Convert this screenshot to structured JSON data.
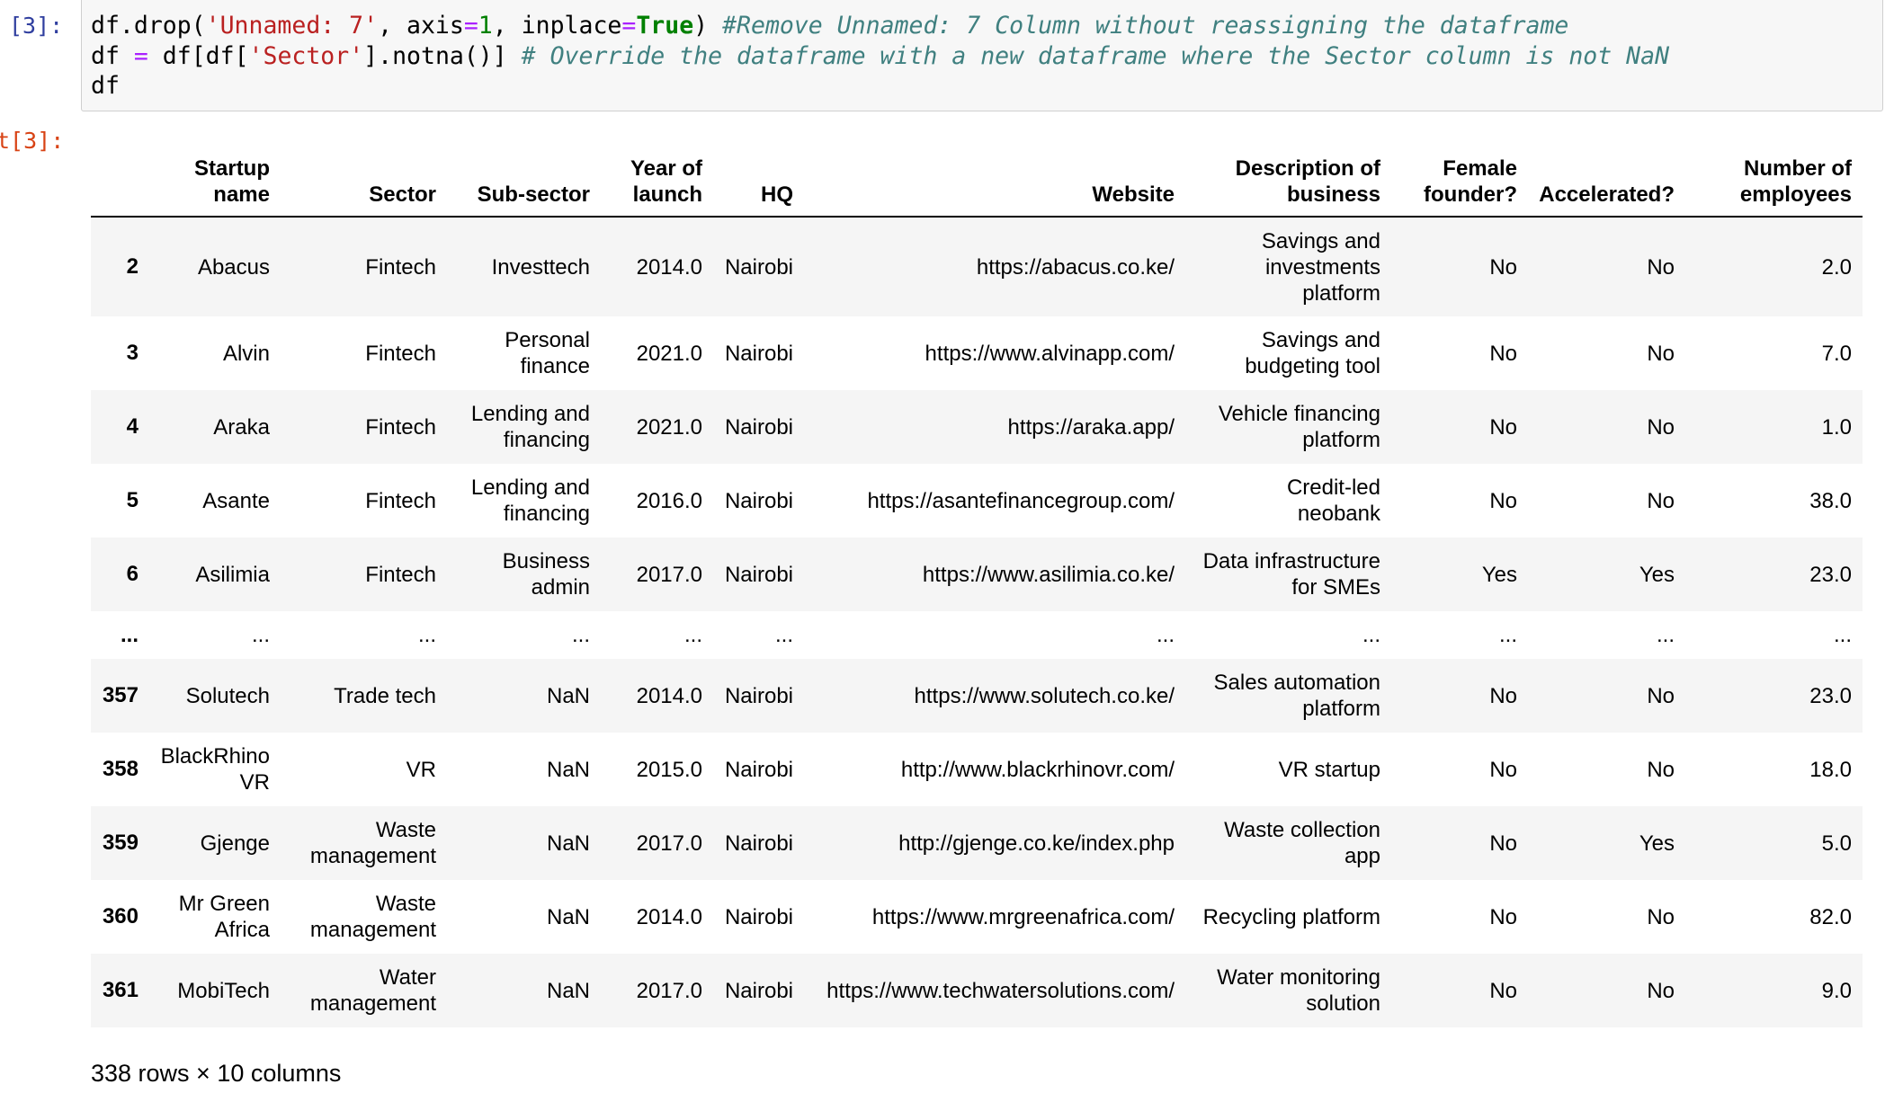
{
  "prompts": {
    "input": "[3]:",
    "output": "t[3]:"
  },
  "code": {
    "line1": {
      "p1": "df.drop(",
      "s1": "'Unnamed: 7'",
      "p2": ", axis",
      "eq1": "=",
      "n1": "1",
      "p3": ", inplace",
      "eq2": "=",
      "kw": "True",
      "p4": ") ",
      "comment": "#Remove Unnamed: 7 Column without reassigning the dataframe"
    },
    "line2": {
      "p1": "df ",
      "eq": "=",
      "p2": " df[df[",
      "s1": "'Sector'",
      "p3": "].notna()] ",
      "comment": "# Override the dataframe with a new dataframe where the Sector column is not NaN"
    },
    "line3": "df"
  },
  "table": {
    "columns": [
      {
        "name": "Startup name",
        "lines": [
          "Startup",
          "name"
        ]
      },
      {
        "name": "Sector",
        "lines": [
          "Sector"
        ]
      },
      {
        "name": "Sub-sector",
        "lines": [
          "Sub-sector"
        ]
      },
      {
        "name": "Year of launch",
        "lines": [
          "Year of",
          "launch"
        ]
      },
      {
        "name": "HQ",
        "lines": [
          "HQ"
        ]
      },
      {
        "name": "Website",
        "lines": [
          "Website"
        ]
      },
      {
        "name": "Description of business",
        "lines": [
          "Description of",
          "business"
        ]
      },
      {
        "name": "Female founder?",
        "lines": [
          "Female",
          "founder?"
        ]
      },
      {
        "name": "Accelerated?",
        "lines": [
          "Accelerated?"
        ]
      },
      {
        "name": "Number of employees",
        "lines": [
          "Number of",
          "employees"
        ]
      }
    ],
    "rows": [
      {
        "index": "2",
        "cells": [
          [
            "Abacus"
          ],
          [
            "Fintech"
          ],
          [
            "Investtech"
          ],
          [
            "2014.0"
          ],
          [
            "Nairobi"
          ],
          [
            "https://abacus.co.ke/"
          ],
          [
            "Savings and",
            "investments",
            "platform"
          ],
          [
            "No"
          ],
          [
            "No"
          ],
          [
            "2.0"
          ]
        ]
      },
      {
        "index": "3",
        "cells": [
          [
            "Alvin"
          ],
          [
            "Fintech"
          ],
          [
            "Personal",
            "finance"
          ],
          [
            "2021.0"
          ],
          [
            "Nairobi"
          ],
          [
            "https://www.alvinapp.com/"
          ],
          [
            "Savings and",
            "budgeting tool"
          ],
          [
            "No"
          ],
          [
            "No"
          ],
          [
            "7.0"
          ]
        ]
      },
      {
        "index": "4",
        "cells": [
          [
            "Araka"
          ],
          [
            "Fintech"
          ],
          [
            "Lending and",
            "financing"
          ],
          [
            "2021.0"
          ],
          [
            "Nairobi"
          ],
          [
            "https://araka.app/"
          ],
          [
            "Vehicle financing",
            "platform"
          ],
          [
            "No"
          ],
          [
            "No"
          ],
          [
            "1.0"
          ]
        ]
      },
      {
        "index": "5",
        "cells": [
          [
            "Asante"
          ],
          [
            "Fintech"
          ],
          [
            "Lending and",
            "financing"
          ],
          [
            "2016.0"
          ],
          [
            "Nairobi"
          ],
          [
            "https://asantefinancegroup.com/"
          ],
          [
            "Credit-led",
            "neobank"
          ],
          [
            "No"
          ],
          [
            "No"
          ],
          [
            "38.0"
          ]
        ]
      },
      {
        "index": "6",
        "cells": [
          [
            "Asilimia"
          ],
          [
            "Fintech"
          ],
          [
            "Business",
            "admin"
          ],
          [
            "2017.0"
          ],
          [
            "Nairobi"
          ],
          [
            "https://www.asilimia.co.ke/"
          ],
          [
            "Data infrastructure",
            "for SMEs"
          ],
          [
            "Yes"
          ],
          [
            "Yes"
          ],
          [
            "23.0"
          ]
        ]
      },
      {
        "index": "...",
        "cells": [
          [
            "..."
          ],
          [
            "..."
          ],
          [
            "..."
          ],
          [
            "..."
          ],
          [
            "..."
          ],
          [
            "..."
          ],
          [
            "..."
          ],
          [
            "..."
          ],
          [
            "..."
          ],
          [
            "..."
          ]
        ]
      },
      {
        "index": "357",
        "cells": [
          [
            "Solutech"
          ],
          [
            "Trade tech"
          ],
          [
            "NaN"
          ],
          [
            "2014.0"
          ],
          [
            "Nairobi"
          ],
          [
            "https://www.solutech.co.ke/"
          ],
          [
            "Sales automation",
            "platform"
          ],
          [
            "No"
          ],
          [
            "No"
          ],
          [
            "23.0"
          ]
        ]
      },
      {
        "index": "358",
        "cells": [
          [
            "BlackRhino",
            "VR"
          ],
          [
            "VR"
          ],
          [
            "NaN"
          ],
          [
            "2015.0"
          ],
          [
            "Nairobi"
          ],
          [
            "http://www.blackrhinovr.com/"
          ],
          [
            "VR startup"
          ],
          [
            "No"
          ],
          [
            "No"
          ],
          [
            "18.0"
          ]
        ]
      },
      {
        "index": "359",
        "cells": [
          [
            "Gjenge"
          ],
          [
            "Waste",
            "management"
          ],
          [
            "NaN"
          ],
          [
            "2017.0"
          ],
          [
            "Nairobi"
          ],
          [
            "http://gjenge.co.ke/index.php"
          ],
          [
            "Waste collection",
            "app"
          ],
          [
            "No"
          ],
          [
            "Yes"
          ],
          [
            "5.0"
          ]
        ]
      },
      {
        "index": "360",
        "cells": [
          [
            "Mr Green",
            "Africa"
          ],
          [
            "Waste",
            "management"
          ],
          [
            "NaN"
          ],
          [
            "2014.0"
          ],
          [
            "Nairobi"
          ],
          [
            "https://www.mrgreenafrica.com/"
          ],
          [
            "Recycling platform"
          ],
          [
            "No"
          ],
          [
            "No"
          ],
          [
            "82.0"
          ]
        ]
      },
      {
        "index": "361",
        "cells": [
          [
            "MobiTech"
          ],
          [
            "Water",
            "management"
          ],
          [
            "NaN"
          ],
          [
            "2017.0"
          ],
          [
            "Nairobi"
          ],
          [
            "https://www.techwatersolutions.com/"
          ],
          [
            "Water monitoring",
            "solution"
          ],
          [
            "No"
          ],
          [
            "No"
          ],
          [
            "9.0"
          ]
        ]
      }
    ]
  },
  "footer": "338 rows × 10 columns"
}
